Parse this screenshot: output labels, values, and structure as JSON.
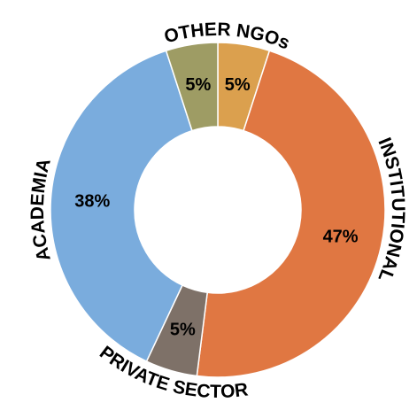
{
  "chart_data": {
    "type": "donut",
    "categories": [
      null,
      "INSTITUTIONAL",
      "PRIVATE SECTOR",
      "ACADEMIA",
      "OTHER NGOs"
    ],
    "values": [
      5,
      47,
      5,
      38,
      5
    ],
    "value_labels": [
      "5%",
      "47%",
      "5%",
      "38%",
      "5%"
    ],
    "colors": [
      "#dba04e",
      "#e07742",
      "#7e7168",
      "#7aacdd",
      "#9e9c64"
    ]
  }
}
